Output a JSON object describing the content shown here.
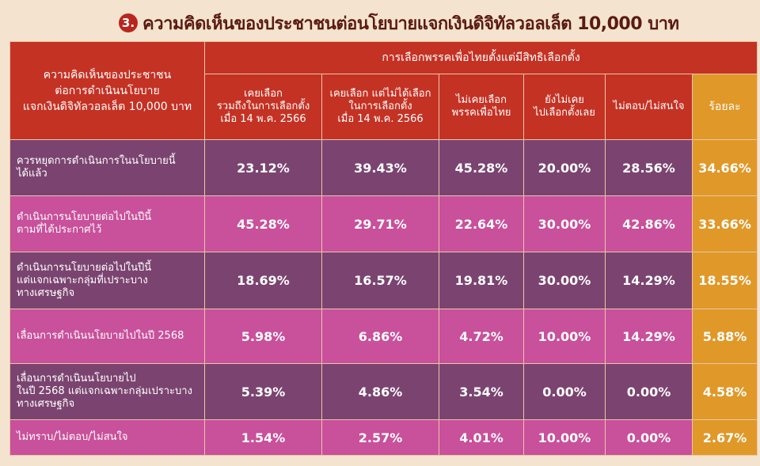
{
  "header": {
    "badge": "3.",
    "title": "ความคิดเห็นของประชาชนต่อนโยบายแจกเงินดิจิทัลวอลเล็ต 10,000 บาท"
  },
  "table": {
    "row_header_label": "ความคิดเห็นของประชาชน\nต่อการดำเนินนโยบาย\nแจกเงินดิจิทัลวอลเล็ต 10,000 บาท",
    "group_header": "การเลือกพรรคเพื่อไทยตั้งแต่มีสิทธิเลือกตั้ง",
    "columns": [
      "เคยเลือก\nรวมถึงในการเลือกตั้ง\nเมื่อ 14 พ.ค. 2566",
      "เคยเลือก แต่ไม่ได้เลือก\nในการเลือกตั้ง\nเมื่อ 14 พ.ค. 2566",
      "ไม่เคยเลือก\nพรรคเพื่อไทย",
      "ยังไม่เคย\nไปเลือกตั้งเลย",
      "ไม่ตอบ/ไม่สนใจ"
    ],
    "percent_header": "ร้อยละ"
  },
  "chart_data": {
    "type": "table",
    "title": "ความคิดเห็นของประชาชนต่อนโยบายแจกเงินดิจิทัลวอลเล็ต 10,000 บาท",
    "rows": [
      {
        "label": "ควรหยุดการดำเนินการในนโยบายนี้\nได้แล้ว",
        "values": [
          "23.12%",
          "39.43%",
          "45.28%",
          "20.00%",
          "28.56%"
        ],
        "total": "34.66%"
      },
      {
        "label": "ดำเนินการนโยบายต่อไปในปีนี้\nตามที่ได้ประกาศไว้",
        "values": [
          "45.28%",
          "29.71%",
          "22.64%",
          "30.00%",
          "42.86%"
        ],
        "total": "33.66%"
      },
      {
        "label": "ดำเนินการนโยบายต่อไปในปีนี้\nแต่แจกเฉพาะกลุ่มที่เปราะบาง\nทางเศรษฐกิจ",
        "values": [
          "18.69%",
          "16.57%",
          "19.81%",
          "30.00%",
          "14.29%"
        ],
        "total": "18.55%"
      },
      {
        "label": "เลื่อนการดำเนินนโยบายไปในปี 2568",
        "values": [
          "5.98%",
          "6.86%",
          "4.72%",
          "10.00%",
          "14.29%"
        ],
        "total": "5.88%"
      },
      {
        "label": "เลื่อนการดำเนินนโยบายไป\nในปี 2568 แต่แจกเฉพาะกลุ่มเปราะบาง\nทางเศรษฐกิจ",
        "values": [
          "5.39%",
          "4.86%",
          "3.54%",
          "0.00%",
          "0.00%"
        ],
        "total": "4.58%"
      },
      {
        "label": "ไม่ทราบ/ไม่ตอบ/ไม่สนใจ",
        "values": [
          "1.54%",
          "2.57%",
          "4.01%",
          "10.00%",
          "0.00%"
        ],
        "total": "2.67%"
      }
    ]
  }
}
